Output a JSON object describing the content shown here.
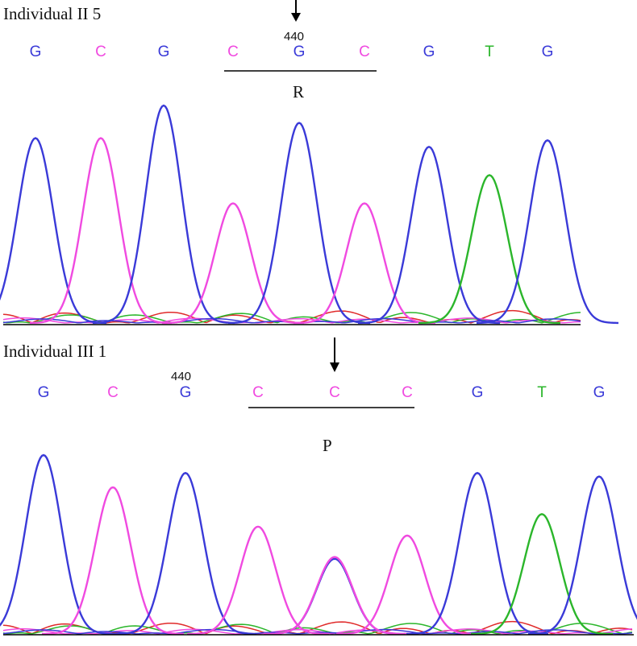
{
  "colors": {
    "G": "#3a3ad8",
    "C": "#f04ae0",
    "T": "#2bb62b",
    "A": "#e02a2a",
    "text": "#111111"
  },
  "chart_data": [
    {
      "type": "line",
      "individual": "Individual II 5",
      "position_label": "440",
      "codon_label": "R",
      "bases": [
        "G",
        "C",
        "G",
        "C",
        "G",
        "C",
        "G",
        "T",
        "G"
      ],
      "peaks": [
        {
          "base": "G",
          "height": 0.85
        },
        {
          "base": "C",
          "height": 0.85
        },
        {
          "base": "G",
          "height": 1.0
        },
        {
          "base": "C",
          "height": 0.55
        },
        {
          "base": "G",
          "height": 0.92
        },
        {
          "base": "C",
          "height": 0.55
        },
        {
          "base": "G",
          "height": 0.81
        },
        {
          "base": "T",
          "height": 0.68
        },
        {
          "base": "G",
          "height": 0.84
        }
      ]
    },
    {
      "type": "line",
      "individual": "Individual III 1",
      "position_label": "440",
      "codon_label": "P",
      "bases": [
        "G",
        "C",
        "G",
        "C",
        "C",
        "C",
        "G",
        "T",
        "G"
      ],
      "peaks": [
        {
          "base": "G",
          "height": 1.0
        },
        {
          "base": "C",
          "height": 0.82
        },
        {
          "base": "G",
          "height": 0.9
        },
        {
          "base": "C",
          "height": 0.6
        },
        {
          "base": "C",
          "height": 0.43
        },
        {
          "base": "C",
          "height": 0.55
        },
        {
          "base": "G",
          "height": 0.9
        },
        {
          "base": "T",
          "height": 0.67
        },
        {
          "base": "G",
          "height": 0.88
        }
      ],
      "secondary_peaks": [
        {
          "base": "G",
          "under_peak": 5,
          "height": 0.42
        }
      ]
    }
  ]
}
